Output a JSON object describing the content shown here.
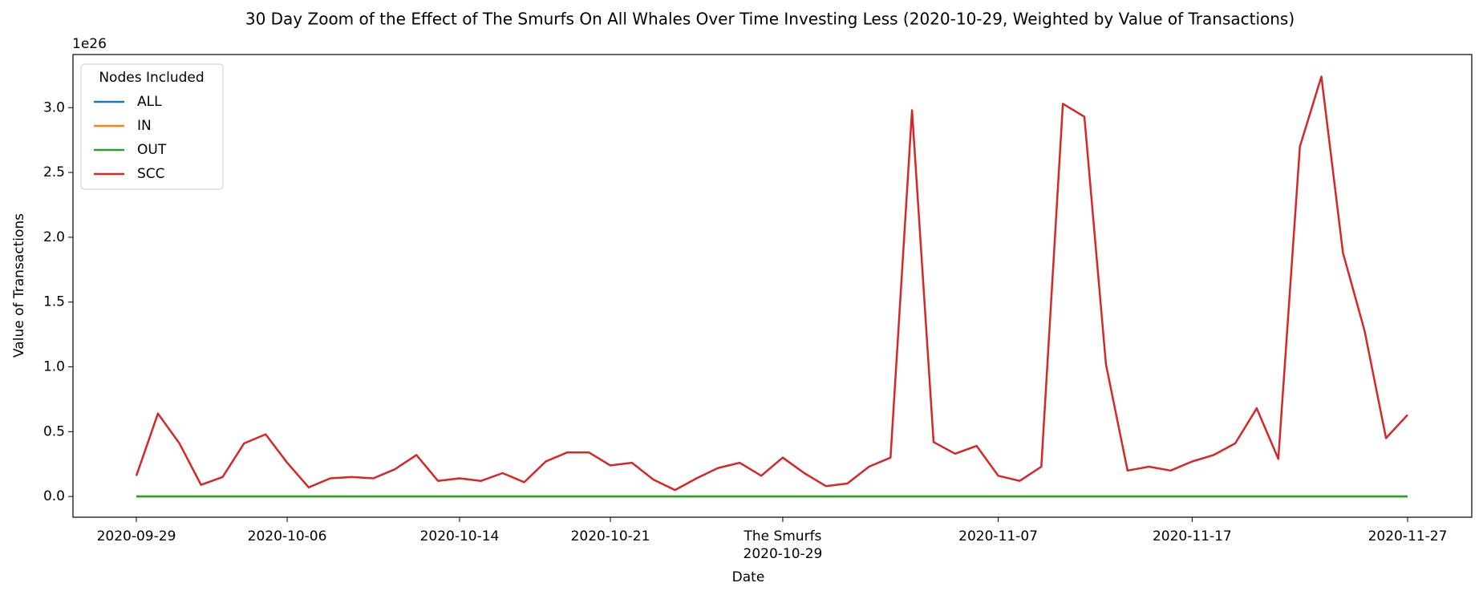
{
  "chart_data": {
    "type": "line",
    "title": "30 Day Zoom of the Effect of The Smurfs On All Whales Over Time Investing Less (2020-10-29, Weighted by Value of Transactions)",
    "x_label": "Date",
    "y_label": "Value of Transactions",
    "y_offset_label": "1e26",
    "annotation": "The Smurfs",
    "legend_title": "Nodes Included",
    "legend_position": "upper left",
    "categories": [
      "2020-09-29",
      null,
      null,
      null,
      null,
      null,
      null,
      "2020-10-06",
      null,
      null,
      null,
      null,
      null,
      null,
      null,
      "2020-10-14",
      null,
      null,
      null,
      null,
      null,
      null,
      "2020-10-21",
      null,
      null,
      null,
      null,
      null,
      null,
      null,
      "2020-10-29",
      null,
      null,
      null,
      null,
      null,
      null,
      null,
      null,
      null,
      "2020-11-07",
      null,
      null,
      null,
      null,
      null,
      null,
      null,
      null,
      "2020-11-17",
      null,
      null,
      null,
      null,
      null,
      null,
      null,
      null,
      null,
      "2020-11-27"
    ],
    "series": [
      {
        "name": "ALL",
        "color": "#1f77b4",
        "values": [
          0,
          0,
          0,
          0,
          0,
          0,
          0,
          0,
          0,
          0,
          0,
          0,
          0,
          0,
          0,
          0,
          0,
          0,
          0,
          0,
          0,
          0,
          0,
          0,
          0,
          0,
          0,
          0,
          0,
          0,
          0,
          0,
          0,
          0,
          0,
          0,
          0,
          0,
          0,
          0,
          0,
          0,
          0,
          0,
          0,
          0,
          0,
          0,
          0,
          0,
          0,
          0,
          0,
          0,
          0,
          0,
          0,
          0,
          0,
          0
        ]
      },
      {
        "name": "IN",
        "color": "#ff7f0e",
        "values": [
          0,
          0,
          0,
          0,
          0,
          0,
          0,
          0,
          0,
          0,
          0,
          0,
          0,
          0,
          0,
          0,
          0,
          0,
          0,
          0,
          0,
          0,
          0,
          0,
          0,
          0,
          0,
          0,
          0,
          0,
          0,
          0,
          0,
          0,
          0,
          0,
          0,
          0,
          0,
          0,
          0,
          0,
          0,
          0,
          0,
          0,
          0,
          0,
          0,
          0,
          0,
          0,
          0,
          0,
          0,
          0,
          0,
          0,
          0,
          0
        ]
      },
      {
        "name": "OUT",
        "color": "#2ca02c",
        "values": [
          0,
          0,
          0,
          0,
          0,
          0,
          0,
          0,
          0,
          0,
          0,
          0,
          0,
          0,
          0,
          0,
          0,
          0,
          0,
          0,
          0,
          0,
          0,
          0,
          0,
          0,
          0,
          0,
          0,
          0,
          0,
          0,
          0,
          0,
          0,
          0,
          0,
          0,
          0,
          0,
          0,
          0,
          0,
          0,
          0,
          0,
          0,
          0,
          0,
          0,
          0,
          0,
          0,
          0,
          0,
          0,
          0,
          0,
          0,
          0
        ]
      },
      {
        "name": "SCC",
        "color": "#d62728",
        "values": [
          0.16,
          0.64,
          0.41,
          0.09,
          0.15,
          0.41,
          0.48,
          0.26,
          0.07,
          0.14,
          0.15,
          0.14,
          0.21,
          0.32,
          0.12,
          0.14,
          0.12,
          0.18,
          0.11,
          0.27,
          0.34,
          0.34,
          0.24,
          0.26,
          0.13,
          0.05,
          0.14,
          0.22,
          0.26,
          0.16,
          0.3,
          0.18,
          0.08,
          0.1,
          0.23,
          0.3,
          2.98,
          0.42,
          0.33,
          0.39,
          0.16,
          0.12,
          0.23,
          3.03,
          2.93,
          1.02,
          0.2,
          0.23,
          0.2,
          0.27,
          0.32,
          0.41,
          0.68,
          0.29,
          2.7,
          3.24,
          1.88,
          1.28,
          0.45,
          0.63
        ]
      }
    ],
    "ylim": [
      -0.16,
      3.41
    ],
    "yticks": [
      {
        "value": 0,
        "label": "0.0"
      },
      0.5,
      {
        "value": 1,
        "label": "1.0"
      },
      1.5,
      {
        "value": 2,
        "label": "2.0"
      },
      2.5,
      {
        "value": 3,
        "label": "3.0"
      }
    ]
  }
}
